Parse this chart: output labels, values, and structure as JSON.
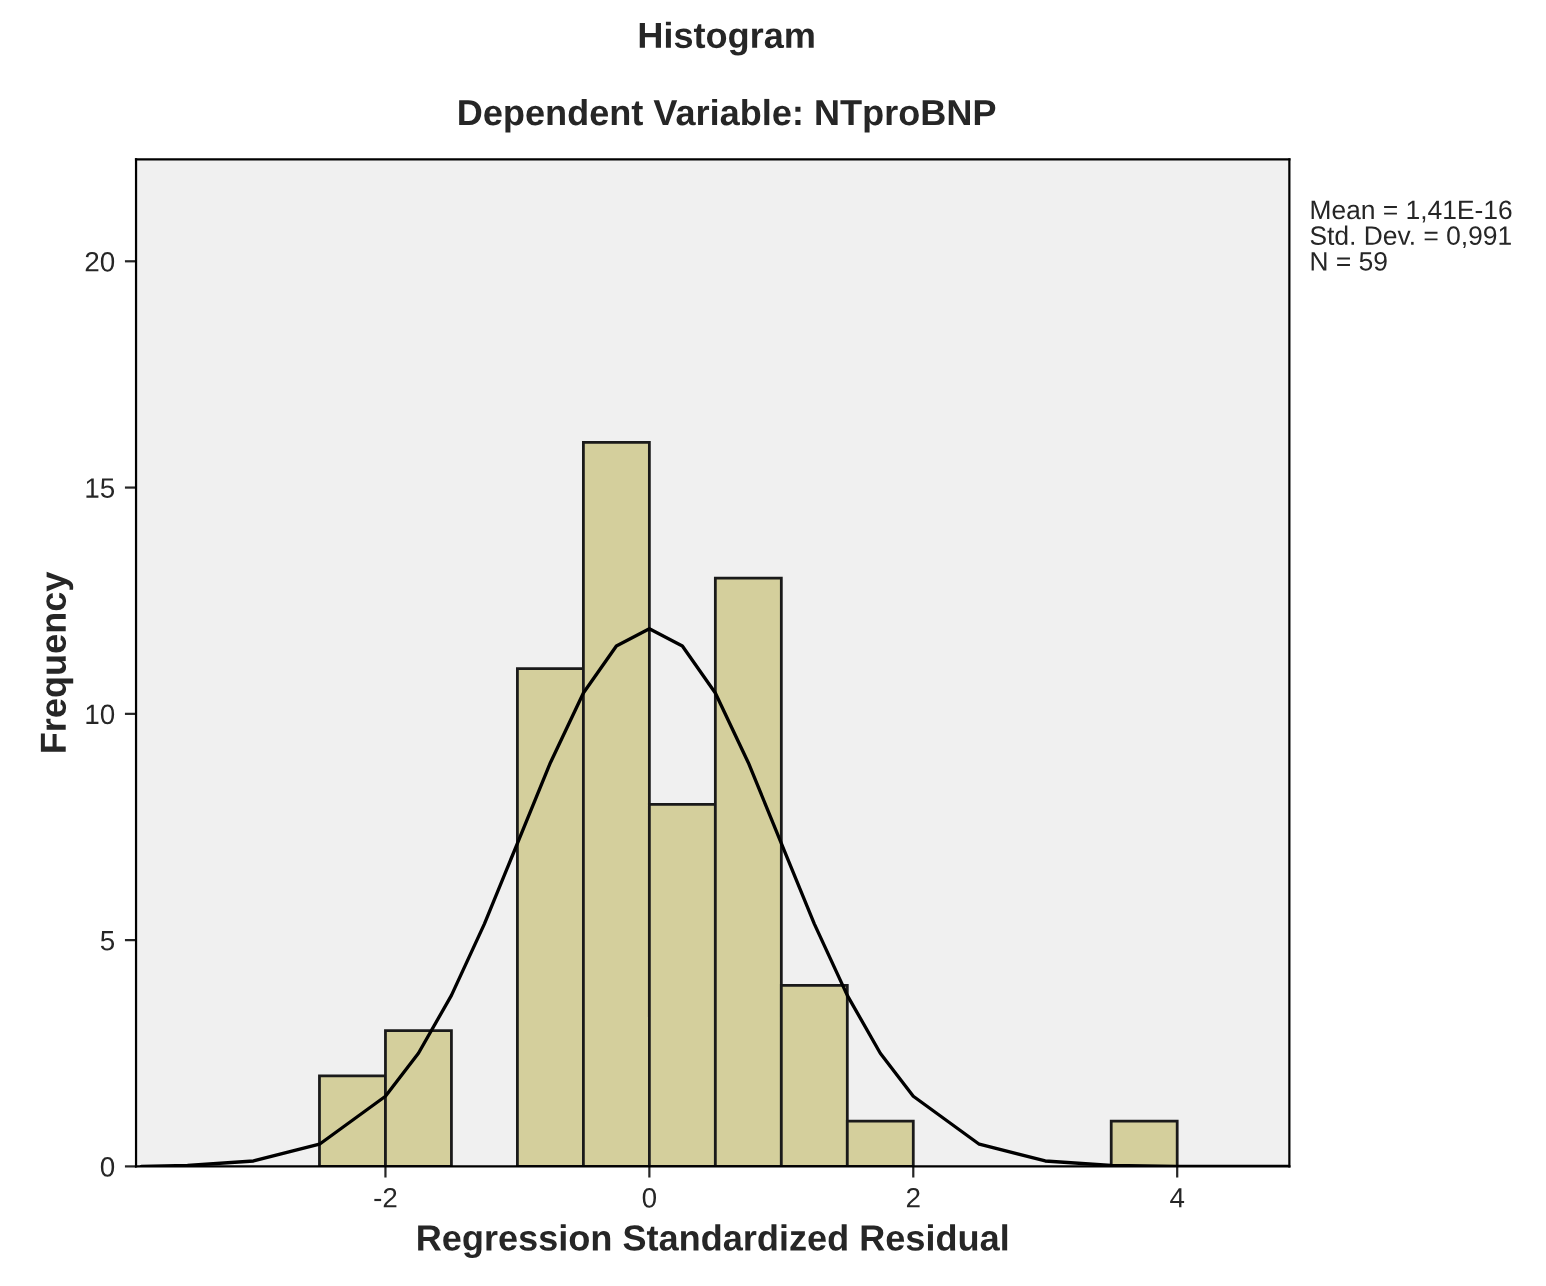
{
  "chart_data": {
    "type": "histogram",
    "title": "Histogram",
    "subtitle": "Dependent Variable: NTproBNP",
    "xlabel": "Regression Standardized Residual",
    "ylabel": "Frequency",
    "series": [
      {
        "color": "#d4cf9c",
        "bins": [
          -2.5,
          -2.0,
          -1.5,
          -1.0,
          -0.5,
          0.0,
          0.5,
          1.0,
          1.5,
          2.0,
          2.5,
          3.0,
          3.5,
          4.0
        ],
        "values": [
          2,
          3,
          0,
          11,
          16,
          8,
          13,
          4,
          1,
          0,
          0,
          0,
          1
        ]
      },
      {
        "type": "line",
        "color": "#000000",
        "x": [
          -3.85,
          -3.5,
          -3.0,
          -2.5,
          -2.0,
          -1.75,
          -1.5,
          -1.25,
          -1.0,
          -0.75,
          -0.5,
          -0.25,
          0.0,
          0.25,
          0.5,
          0.75,
          1.0,
          1.25,
          1.5,
          1.75,
          2.0,
          2.5,
          3.0,
          3.5,
          4.0,
          4.85
        ],
        "values": [
          0.0,
          0.02,
          0.12,
          0.49,
          1.55,
          2.5,
          3.78,
          5.36,
          7.14,
          8.92,
          10.46,
          11.5,
          11.88,
          11.5,
          10.46,
          8.92,
          7.14,
          5.36,
          3.78,
          2.5,
          1.55,
          0.49,
          0.12,
          0.02,
          0.0,
          0.0
        ]
      }
    ],
    "xlim": [
      -3.89,
      4.85
    ],
    "ylim": [
      0,
      22.25
    ],
    "xticks": [
      -2,
      0,
      2,
      4
    ],
    "yticks": [
      0,
      5,
      10,
      15,
      20
    ],
    "grid": false,
    "annotations": [
      "Mean = 1,41E-16",
      "Std. Dev. = 0,991",
      "N = 59"
    ]
  }
}
